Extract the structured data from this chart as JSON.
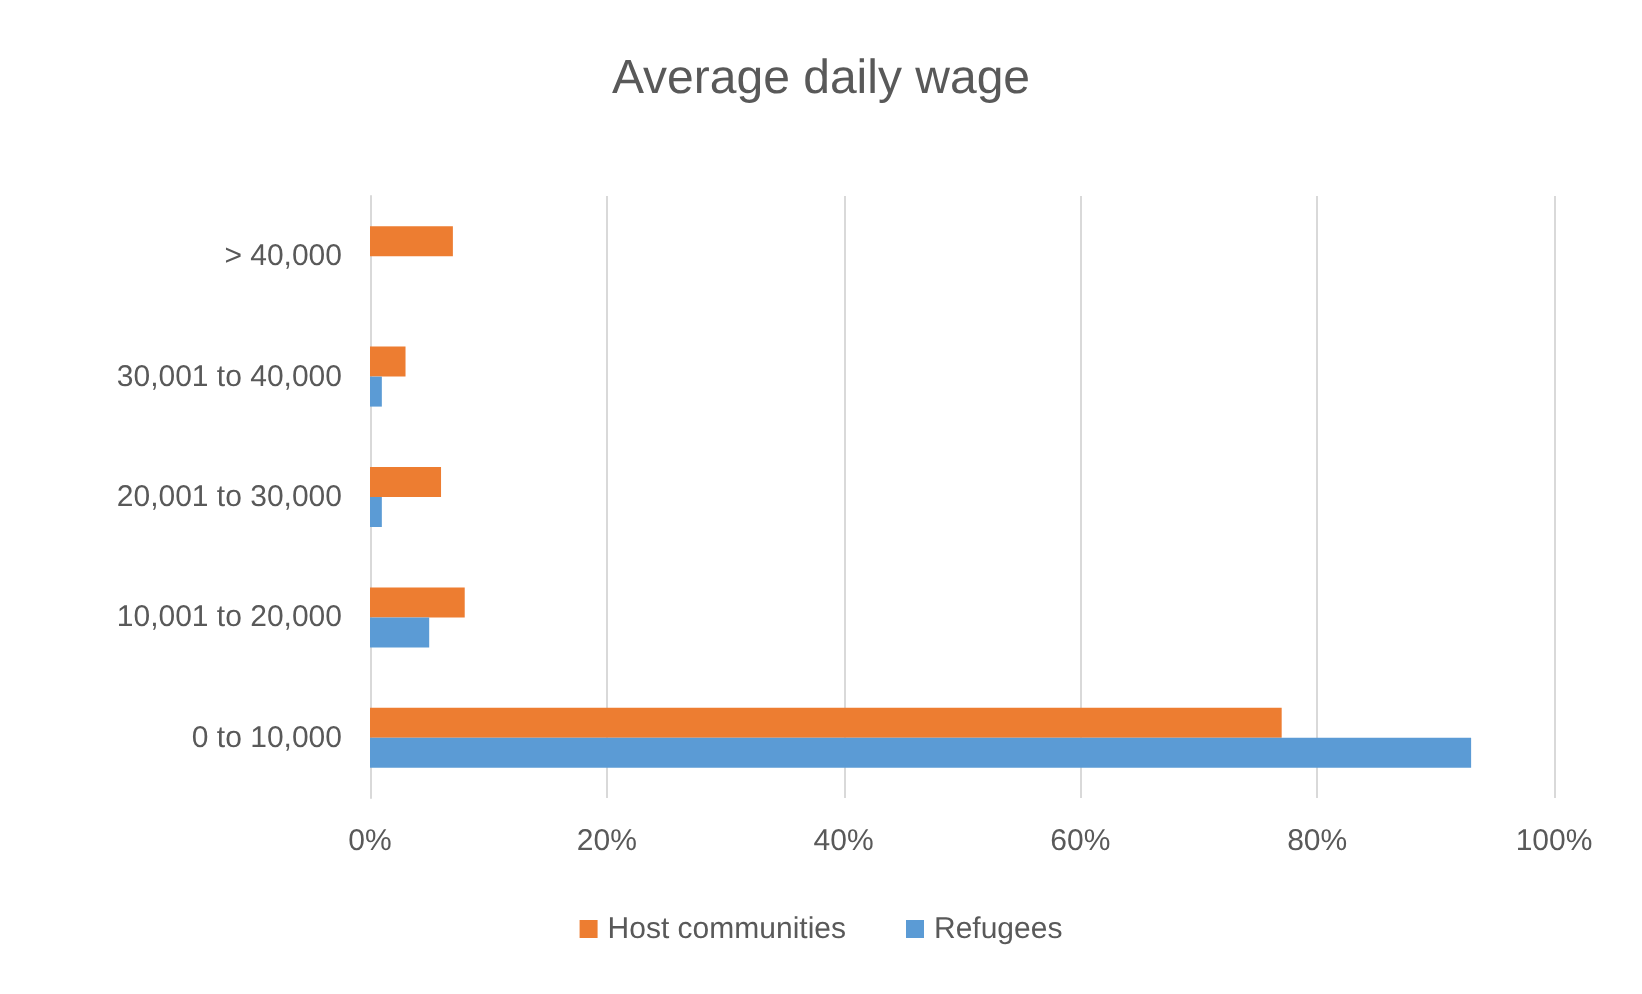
{
  "chart_data": {
    "type": "bar",
    "orientation": "horizontal",
    "title": "Average daily wage",
    "categories": [
      "> 40,000",
      "30,001 to 40,000",
      "20,001 to 30,000",
      "10,001 to 20,000",
      "0 to 10,000"
    ],
    "series": [
      {
        "name": "Host communities",
        "color": "#ed7d31",
        "values": [
          7,
          3,
          6,
          8,
          77
        ]
      },
      {
        "name": "Refugees",
        "color": "#5b9bd5",
        "values": [
          0,
          1,
          1,
          5,
          93
        ]
      }
    ],
    "xlim": [
      0,
      100
    ],
    "xticks": [
      {
        "value": 0,
        "label": "0%"
      },
      {
        "value": 20,
        "label": "20%"
      },
      {
        "value": 40,
        "label": "40%"
      },
      {
        "value": 60,
        "label": "60%"
      },
      {
        "value": 80,
        "label": "80%"
      },
      {
        "value": 100,
        "label": "100%"
      }
    ],
    "grid": "x",
    "legend": "bottom"
  }
}
